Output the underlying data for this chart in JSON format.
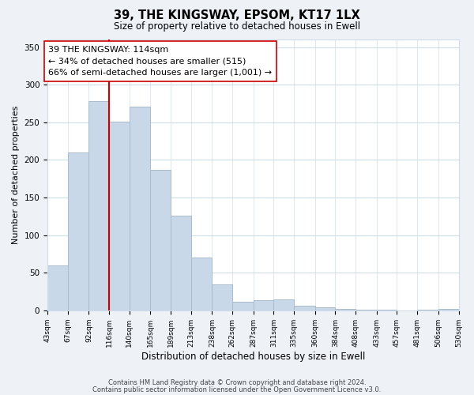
{
  "title": "39, THE KINGSWAY, EPSOM, KT17 1LX",
  "subtitle": "Size of property relative to detached houses in Ewell",
  "xlabel": "Distribution of detached houses by size in Ewell",
  "ylabel": "Number of detached properties",
  "bar_color": "#c8d8e8",
  "bar_edge_color": "#aabbcc",
  "vline_x": 116,
  "vline_color": "#cc0000",
  "bin_edges": [
    43,
    67,
    92,
    116,
    140,
    165,
    189,
    213,
    238,
    262,
    287,
    311,
    335,
    360,
    384,
    408,
    433,
    457,
    481,
    506,
    530
  ],
  "bin_labels": [
    "43sqm",
    "67sqm",
    "92sqm",
    "116sqm",
    "140sqm",
    "165sqm",
    "189sqm",
    "213sqm",
    "238sqm",
    "262sqm",
    "287sqm",
    "311sqm",
    "335sqm",
    "360sqm",
    "384sqm",
    "408sqm",
    "433sqm",
    "457sqm",
    "481sqm",
    "506sqm",
    "530sqm"
  ],
  "counts": [
    60,
    210,
    278,
    251,
    271,
    187,
    126,
    70,
    34,
    11,
    13,
    15,
    6,
    4,
    2,
    1,
    1,
    0,
    1,
    2
  ],
  "annotation_text": "39 THE KINGSWAY: 114sqm\n← 34% of detached houses are smaller (515)\n66% of semi-detached houses are larger (1,001) →",
  "annotation_box_color": "#ffffff",
  "annotation_box_edge": "#cc0000",
  "ylim": [
    0,
    360
  ],
  "yticks": [
    0,
    50,
    100,
    150,
    200,
    250,
    300,
    350
  ],
  "footer_line1": "Contains HM Land Registry data © Crown copyright and database right 2024.",
  "footer_line2": "Contains public sector information licensed under the Open Government Licence v3.0.",
  "bg_color": "#eef2f7",
  "plot_bg_color": "#ffffff",
  "grid_color": "#d0dce8"
}
